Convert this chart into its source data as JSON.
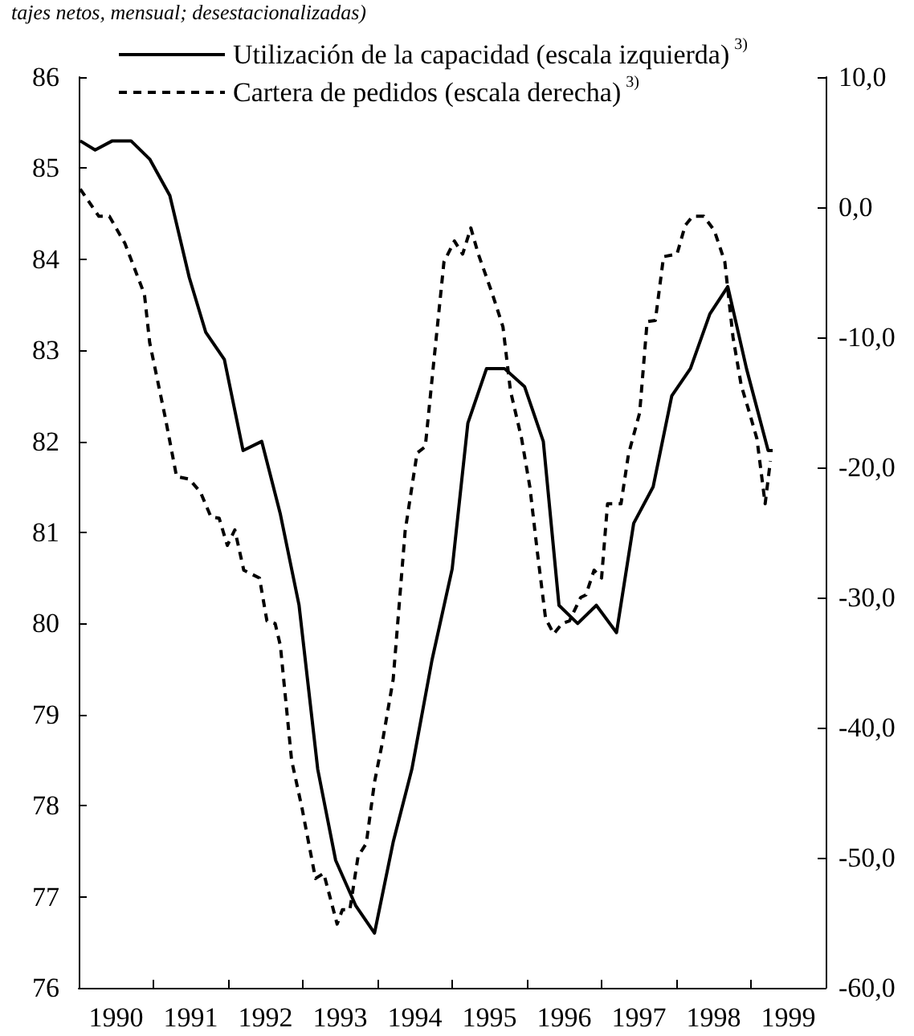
{
  "chart_data": {
    "type": "line",
    "subtitle": "tajes netos, mensual; desestacionalizadas)",
    "xlim": [
      1990,
      2000
    ],
    "xticks": [
      {
        "value": 1990,
        "label": null
      },
      {
        "value": 1990.5,
        "label": "1990"
      },
      {
        "value": 1991,
        "label": null
      },
      {
        "value": 1991.5,
        "label": "1991"
      },
      {
        "value": 1992,
        "label": null
      },
      {
        "value": 1992.5,
        "label": "1992"
      },
      {
        "value": 1993,
        "label": null
      },
      {
        "value": 1993.5,
        "label": "1993"
      },
      {
        "value": 1994,
        "label": null
      },
      {
        "value": 1994.5,
        "label": "1994"
      },
      {
        "value": 1995,
        "label": null
      },
      {
        "value": 1995.5,
        "label": "1995"
      },
      {
        "value": 1996,
        "label": null
      },
      {
        "value": 1996.5,
        "label": "1996"
      },
      {
        "value": 1997,
        "label": null
      },
      {
        "value": 1997.5,
        "label": "1997"
      },
      {
        "value": 1998,
        "label": null
      },
      {
        "value": 1998.5,
        "label": "1998"
      },
      {
        "value": 1999,
        "label": null
      },
      {
        "value": 1999.5,
        "label": "1999"
      },
      {
        "value": 2000,
        "label": null
      }
    ],
    "ylim": [
      76,
      86
    ],
    "yticks": [
      76,
      77,
      78,
      79,
      80,
      81,
      82,
      83,
      84,
      85,
      86
    ],
    "y2lim": [
      -60,
      10
    ],
    "y2ticks": [
      {
        "value": -60,
        "label": "-60,0"
      },
      {
        "value": -50,
        "label": "-50,0"
      },
      {
        "value": -40,
        "label": "-40,0"
      },
      {
        "value": -30,
        "label": "-30,0"
      },
      {
        "value": -20,
        "label": "-20,0"
      },
      {
        "value": -10,
        "label": "-10,0"
      },
      {
        "value": 0,
        "label": "0,0"
      },
      {
        "value": 10,
        "label": "10,0"
      }
    ],
    "grid": false,
    "legend": "top",
    "marker": "none",
    "series": [
      {
        "name": "Utilización de la capacidad (escala izquierda)$^{3)}$",
        "color": "#000000",
        "line_style": "solid",
        "x": [
          1990.02,
          1990.22,
          1990.45,
          1990.7,
          1990.95,
          1991.22,
          1991.48,
          1991.7,
          1991.95,
          1992.2,
          1992.45,
          1992.7,
          1992.95,
          1993.2,
          1993.44,
          1993.71,
          1993.96,
          1994.21,
          1994.46,
          1994.73,
          1995.0,
          1995.21,
          1995.46,
          1995.7,
          1995.97,
          1996.22,
          1996.43,
          1996.68,
          1996.93,
          1997.2,
          1997.43,
          1997.69,
          1997.94,
          1998.19,
          1998.45,
          1998.69,
          1998.94,
          1999.23,
          1999.29
        ],
        "values": [
          85.3,
          85.2,
          85.3,
          85.3,
          85.1,
          84.7,
          83.8,
          83.2,
          82.9,
          81.9,
          82.0,
          81.2,
          80.2,
          78.4,
          77.4,
          76.9,
          76.6,
          77.6,
          78.4,
          79.6,
          80.6,
          82.2,
          82.8,
          82.8,
          82.6,
          82.0,
          80.2,
          80.0,
          80.2,
          79.9,
          81.1,
          81.5,
          82.5,
          82.8,
          83.4,
          83.7,
          82.8,
          81.9,
          81.9
        ]
      },
      {
        "name": "Cartera de pedidos (escala derecha)$^{3)}$",
        "color": "#000000",
        "line_style": "dashed",
        "axis": "y2",
        "x": [
          1990.02,
          1990.27,
          1990.41,
          1990.62,
          1990.88,
          1990.95,
          1991.16,
          1991.31,
          1991.48,
          1991.63,
          1991.77,
          1991.88,
          1991.99,
          1992.09,
          1992.21,
          1992.42,
          1992.52,
          1992.63,
          1992.7,
          1992.85,
          1992.99,
          1993.17,
          1993.28,
          1993.46,
          1993.53,
          1993.63,
          1993.74,
          1993.85,
          1993.96,
          1994.06,
          1994.21,
          1994.37,
          1994.53,
          1994.64,
          1994.75,
          1994.89,
          1995.03,
          1995.14,
          1995.25,
          1995.35,
          1995.54,
          1995.68,
          1995.78,
          1995.93,
          1996.04,
          1996.14,
          1996.25,
          1996.36,
          1996.47,
          1996.57,
          1996.72,
          1996.79,
          1996.9,
          1997.0,
          1997.08,
          1997.26,
          1997.36,
          1997.51,
          1997.61,
          1997.72,
          1997.83,
          1998.01,
          1998.12,
          1998.22,
          1998.37,
          1998.51,
          1998.65,
          1998.76,
          1998.87,
          1998.98,
          1999.08,
          1999.19,
          1999.26
        ],
        "values": [
          1.4,
          -0.7,
          -0.7,
          -2.8,
          -6.7,
          -10.4,
          -16.2,
          -20.7,
          -20.9,
          -21.9,
          -23.8,
          -23.9,
          -26.0,
          -24.8,
          -27.9,
          -28.5,
          -31.8,
          -32.0,
          -33.7,
          -42.5,
          -46.2,
          -51.6,
          -51.2,
          -55.1,
          -54.0,
          -54.0,
          -49.9,
          -48.9,
          -44.2,
          -41.3,
          -36.3,
          -24.9,
          -18.9,
          -18.4,
          -12.1,
          -4.2,
          -2.6,
          -3.6,
          -1.6,
          -3.6,
          -6.7,
          -9.2,
          -14.1,
          -17.8,
          -21.5,
          -26.5,
          -31.6,
          -32.8,
          -32.0,
          -31.8,
          -30.0,
          -29.8,
          -27.9,
          -28.5,
          -22.8,
          -22.8,
          -19.0,
          -15.8,
          -8.8,
          -8.7,
          -3.8,
          -3.6,
          -1.4,
          -0.7,
          -0.7,
          -1.8,
          -4.2,
          -10.0,
          -13.7,
          -15.8,
          -17.8,
          -22.8,
          -19.5
        ]
      }
    ]
  }
}
